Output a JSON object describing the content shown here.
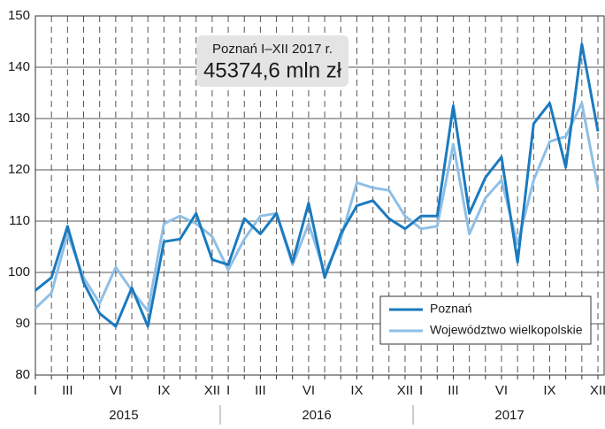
{
  "chart_data": {
    "type": "line",
    "categories": [
      "I",
      null,
      "III",
      null,
      null,
      "VI",
      null,
      null,
      "IX",
      null,
      null,
      "XII",
      "I",
      null,
      "III",
      null,
      null,
      "VI",
      null,
      null,
      "IX",
      null,
      null,
      "XII",
      "I",
      null,
      "III",
      null,
      null,
      "VI",
      null,
      null,
      "IX",
      null,
      null,
      "XII"
    ],
    "years": [
      "2015",
      "2016",
      "2017"
    ],
    "series": [
      {
        "name": "Poznań",
        "color": "#1a7abf",
        "values": [
          96.5,
          99,
          109,
          98,
          92,
          89.5,
          97,
          89.5,
          106,
          106.5,
          111.5,
          102.5,
          101.5,
          110.5,
          107.5,
          111.5,
          102,
          113.5,
          99,
          107.5,
          113,
          114,
          110.5,
          108.5,
          111,
          111,
          132.5,
          111.5,
          118.5,
          122.5,
          102,
          129,
          133,
          120.5,
          144.5,
          127.5
        ]
      },
      {
        "name": "Województwo wielkopolskie",
        "color": "#8fbfe6",
        "values": [
          93,
          96,
          107.5,
          99,
          94,
          101,
          96.5,
          92.5,
          109.5,
          111,
          109.5,
          107,
          100.5,
          106.5,
          111,
          111.5,
          101.5,
          109.5,
          100,
          106.5,
          117.5,
          116.5,
          116,
          111,
          108.5,
          109,
          125,
          107.5,
          114.5,
          118,
          105.5,
          118,
          125.5,
          126.5,
          133,
          116.5
        ]
      }
    ],
    "ylim": [
      80,
      150
    ],
    "yticks": [
      80,
      90,
      100,
      110,
      120,
      130,
      140,
      150
    ],
    "grid": true,
    "legend": "lower right",
    "annotation": {
      "title": "Poznań  I–XII 2017 r.",
      "value": "45374,6 mln zł"
    }
  }
}
